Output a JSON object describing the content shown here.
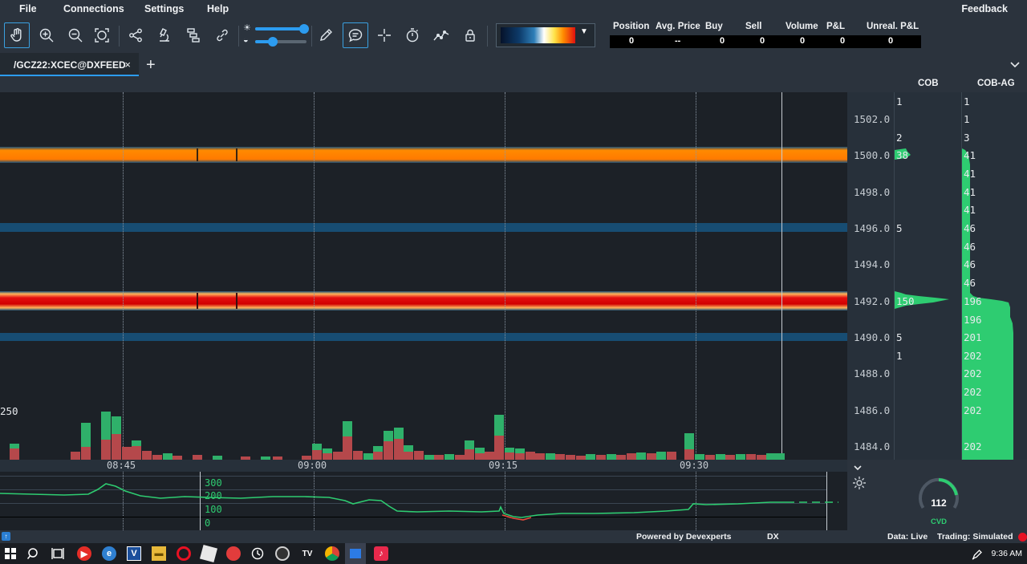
{
  "menu": {
    "file": "File",
    "connections": "Connections",
    "settings": "Settings",
    "help": "Help",
    "feedback": "Feedback"
  },
  "toolbar": {
    "icons": [
      "hand-icon",
      "zoom-in-icon",
      "zoom-out-icon",
      "zoom-fit-icon",
      "share-icon",
      "microscope-icon",
      "layers-icon",
      "link-icon",
      "brightness-icon",
      "contrast-icon",
      "pencil-icon",
      "chat-icon",
      "crosshair-icon",
      "timer-icon",
      "chart-line-icon",
      "lock-icon"
    ],
    "brightness_level": 0.95,
    "contrast_level": 0.35
  },
  "position_table": {
    "headers": [
      "Position",
      "Avg. Price",
      "Buy",
      "Sell",
      "Volume",
      "P&L",
      "Unreal. P&L"
    ],
    "values": [
      "0",
      "--",
      "0",
      "0",
      "0",
      "0",
      "0"
    ]
  },
  "tabs": [
    {
      "label": "/GCZ22:XCEC@DXFEED",
      "close": "×"
    }
  ],
  "tab_add": "+",
  "columns": {
    "cob": "COB",
    "cob_ag": "COB-AG"
  },
  "price_axis": [
    "1502.0",
    "1500.0",
    "1498.0",
    "1496.0",
    "1494.0",
    "1492.0",
    "1490.0",
    "1488.0",
    "1486.0",
    "1484.0"
  ],
  "cob_values": [
    {
      "value": "1",
      "price": 1503.0
    },
    {
      "value": "2",
      "price": 1501.0
    },
    {
      "value": "38",
      "price": 1500.0
    },
    {
      "value": "5",
      "price": 1496.0
    },
    {
      "value": "150",
      "price": 1492.0
    },
    {
      "value": "5",
      "price": 1490.0
    },
    {
      "value": "1",
      "price": 1489.0
    }
  ],
  "cob_ag_values": [
    "1",
    "1",
    "3",
    "41",
    "41",
    "41",
    "41",
    "46",
    "46",
    "46",
    "46",
    "196",
    "196",
    "201",
    "202",
    "202",
    "202",
    "202",
    "202"
  ],
  "volume_label": "250",
  "time_axis": [
    "08:45",
    "09:00",
    "09:15",
    "09:30"
  ],
  "cvd_axis": [
    "300",
    "200",
    "100",
    "0"
  ],
  "cvd_gauge": {
    "value": "112",
    "label": "CVD"
  },
  "status": {
    "powered": "Powered by Devexperts",
    "dx": "DX",
    "data": "Data: Live",
    "trading": "Trading: Simulated"
  },
  "taskbar": {
    "icons": [
      "windows-icon",
      "search-icon",
      "task-view-icon",
      "youtube-icon",
      "edge-icon",
      "visual-studio-icon",
      "file-explorer-icon",
      "opera-icon",
      "roblox-icon",
      "paint-icon",
      "clock-icon",
      "obs-icon",
      "tradingview-icon",
      "chrome-icon",
      "bookmap-icon",
      "tiktok-icon"
    ],
    "time": "9:36 AM"
  }
}
